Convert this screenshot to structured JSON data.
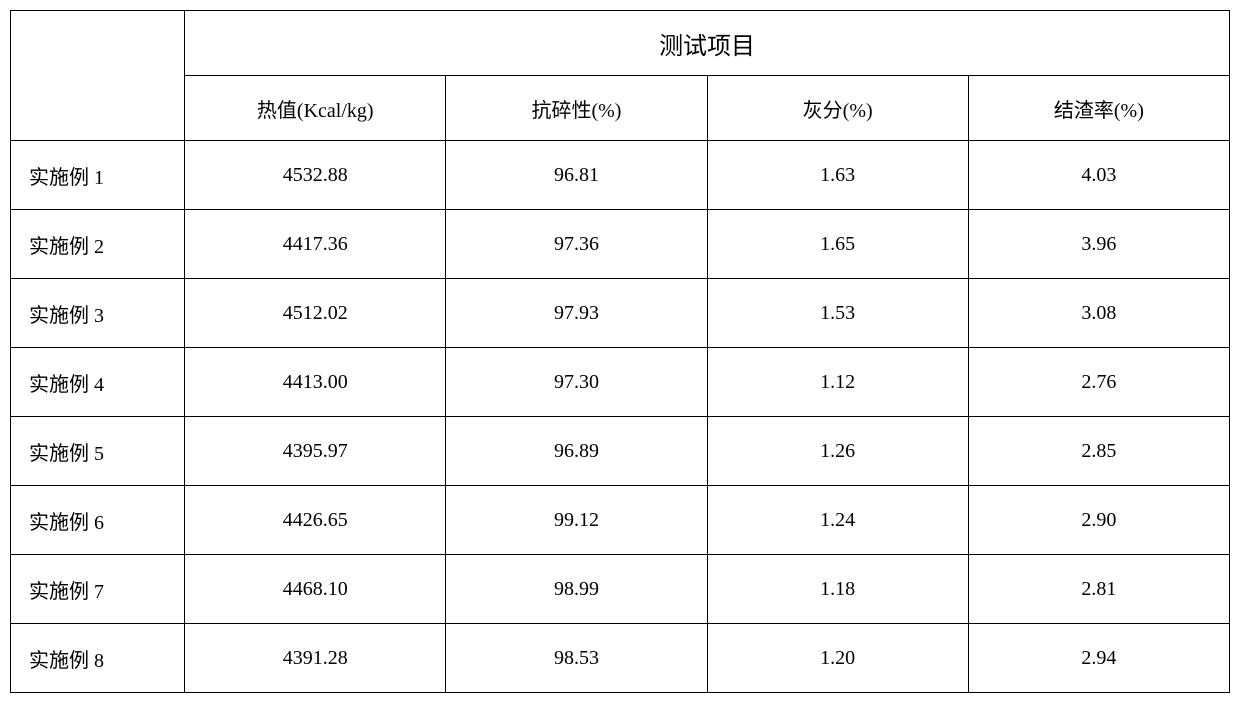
{
  "table": {
    "type": "table",
    "header_title": "测试项目",
    "columns": [
      "热值(Kcal/kg)",
      "抗碎性(%)",
      "灰分(%)",
      "结渣率(%)"
    ],
    "rows": [
      {
        "label": "实施例 1",
        "values": [
          "4532.88",
          "96.81",
          "1.63",
          "4.03"
        ]
      },
      {
        "label": "实施例 2",
        "values": [
          "4417.36",
          "97.36",
          "1.65",
          "3.96"
        ]
      },
      {
        "label": "实施例 3",
        "values": [
          "4512.02",
          "97.93",
          "1.53",
          "3.08"
        ]
      },
      {
        "label": "实施例 4",
        "values": [
          "4413.00",
          "97.30",
          "1.12",
          "2.76"
        ]
      },
      {
        "label": "实施例 5",
        "values": [
          "4395.97",
          "96.89",
          "1.26",
          "2.85"
        ]
      },
      {
        "label": "实施例 6",
        "values": [
          "4426.65",
          "99.12",
          "1.24",
          "2.90"
        ]
      },
      {
        "label": "实施例 7",
        "values": [
          "4468.10",
          "98.99",
          "1.18",
          "2.81"
        ]
      },
      {
        "label": "实施例 8",
        "values": [
          "4391.28",
          "98.53",
          "1.20",
          "2.94"
        ]
      }
    ],
    "border_color": "#000000",
    "background_color": "#ffffff",
    "text_color": "#000000",
    "header_fontsize": 24,
    "sub_header_fontsize": 20,
    "cell_fontsize": 20
  }
}
